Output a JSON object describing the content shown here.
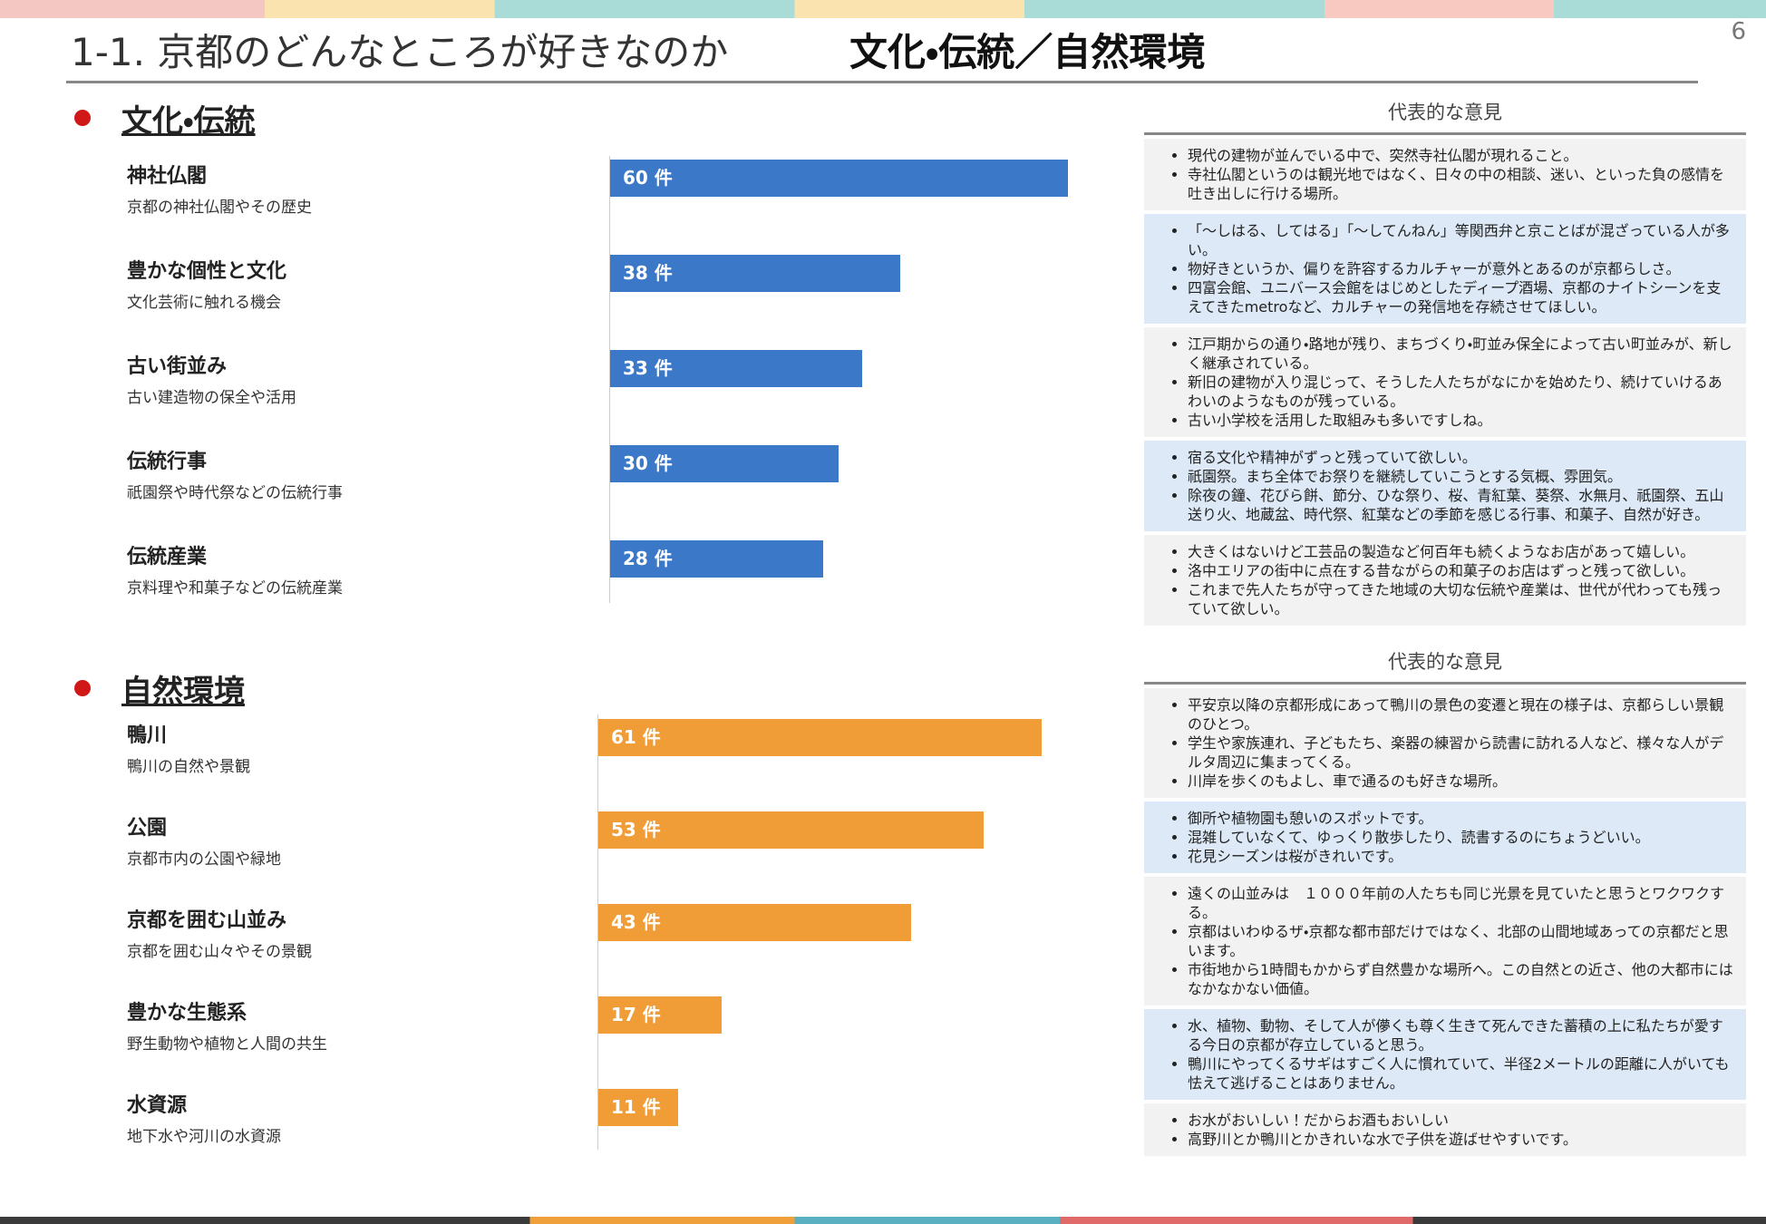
{
  "header": {
    "title": "1-1. 京都のどんなところが好きなのか",
    "subtitle": "文化・伝統／自然環境",
    "page_number": "6"
  },
  "chart_data": [
    {
      "type": "bar",
      "orientation": "horizontal",
      "title": "文化・伝統",
      "color": "#3b78c8",
      "categories": [
        "神社仏閣",
        "豊かな個性と文化",
        "古い街並み",
        "伝統行事",
        "伝統産業"
      ],
      "descriptions": [
        "京都の神社仏閣やその歴史",
        "文化芸術に触れる機会",
        "古い建造物の保全や活用",
        "祇園祭や時代祭などの伝統行事",
        "京料理や和菓子などの伝統産業"
      ],
      "values": [
        60,
        38,
        33,
        30,
        28
      ],
      "value_labels": [
        "60 件",
        "38 件",
        "33 件",
        "30 件",
        "28 件"
      ]
    },
    {
      "type": "bar",
      "orientation": "horizontal",
      "title": "自然環境",
      "color": "#f09d38",
      "categories": [
        "鴨川",
        "公園",
        "京都を囲む山並み",
        "豊かな生態系",
        "水資源"
      ],
      "descriptions": [
        "鴨川の自然や景観",
        "京都市内の公園や緑地",
        "京都を囲む山々やその景観",
        "野生動物や植物と人間の共生",
        "地下水や河川の水資源"
      ],
      "values": [
        61,
        53,
        43,
        17,
        11
      ],
      "value_labels": [
        "61 件",
        "53 件",
        "43 件",
        "17 件",
        "11 件"
      ]
    }
  ],
  "opinions": [
    {
      "title": "代表的な意見",
      "groups": [
        [
          "現代の建物が並んでいる中で、突然寺社仏閣が現れること。",
          "寺社仏閣というのは観光地ではなく、日々の中の相談、迷い、といった負の感情を吐き出しに行ける場所。"
        ],
        [
          "「～しはる、してはる」「～してんねん」等関西弁と京ことばが混ざっている人が多い。",
          "物好きというか、偏りを許容するカルチャーが意外とあるのが京都らしさ。",
          "四富会館、ユニバース会館をはじめとしたディープ酒場、京都のナイトシーンを支えてきたmetroなど、カルチャーの発信地を存続させてほしい。"
        ],
        [
          "江戸期からの通り・路地が残り、まちづくり・町並み保全によって古い町並みが、新しく継承されている。",
          "新旧の建物が入り混じって、そうした人たちがなにかを始めたり、続けていけるあわいのようなものが残っている。",
          "古い小学校を活用した取組みも多いですしね。"
        ],
        [
          "宿る文化や精神がずっと残っていて欲しい。",
          "祇園祭。まち全体でお祭りを継続していこうとする気概、雰囲気。",
          "除夜の鐘、花びら餅、節分、ひな祭り、桜、青紅葉、葵祭、水無月、祇園祭、五山送り火、地蔵盆、時代祭、紅葉などの季節を感じる行事、和菓子、自然が好き。"
        ],
        [
          "大きくはないけど工芸品の製造など何百年も続くようなお店があって嬉しい。",
          "洛中エリアの街中に点在する昔ながらの和菓子のお店はずっと残って欲しい。",
          "これまで先人たちが守ってきた地域の大切な伝統や産業は、世代が代わっても残っていて欲しい。"
        ]
      ]
    },
    {
      "title": "代表的な意見",
      "groups": [
        [
          "平安京以降の京都形成にあって鴨川の景色の変遷と現在の様子は、京都らしい景観のひとつ。",
          "学生や家族連れ、子どもたち、楽器の練習から読書に訪れる人など、様々な人がデルタ周辺に集まってくる。",
          "川岸を歩くのもよし、車で通るのも好きな場所。"
        ],
        [
          "御所や植物園も憩いのスポットです。",
          "混雑していなくて、ゆっくり散歩したり、読書するのにちょうどいい。",
          "花見シーズンは桜がきれいです。"
        ],
        [
          "遠くの山並みは　１０００年前の人たちも同じ光景を見ていたと思うとワクワクする。",
          "京都はいわゆるザ・京都な都市部だけではなく、北部の山間地域あっての京都だと思います。",
          "市街地から1時間もかからず自然豊かな場所へ。この自然との近さ、他の大都市にはなかなかない価値。"
        ],
        [
          "水、植物、動物、そして人が儚くも尊く生きて死んできた蓄積の上に私たちが愛する今日の京都が存立していると思う。",
          "鴨川にやってくるサギはすごく人に慣れていて、半径2メートルの距離に人がいても怯えて逃げることはありません。"
        ],
        [
          "お水がおいしい！だからお酒もおいしい",
          "高野川とか鴨川とかきれいな水で子供を遊ばせやすいです。"
        ]
      ]
    }
  ]
}
